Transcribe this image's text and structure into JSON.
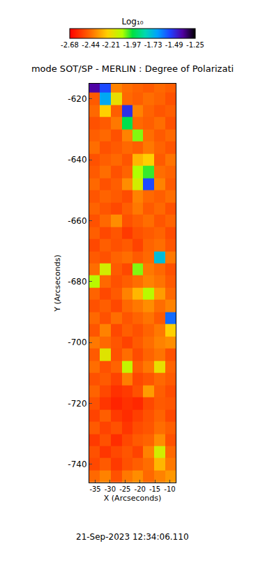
{
  "chart_data": {
    "type": "heatmap",
    "title": "mode SOT/SP - MERLIN : Degree of Polarizati",
    "xlabel": "X (Arcseconds)",
    "ylabel": "Y (Arcseconds)",
    "annotations": [
      "21-Sep-2023 12:34:06.110"
    ],
    "xlim": [
      -37,
      -8
    ],
    "ylim": [
      -746,
      -615
    ],
    "xticks": [
      -35,
      -30,
      -25,
      -20,
      -15,
      -10
    ],
    "yticks": [
      -740,
      -720,
      -700,
      -680,
      -660,
      -640,
      -620
    ],
    "grid": false,
    "colorbar": {
      "title": "Log₁₀",
      "range": [
        -2.68,
        -1.25
      ],
      "ticks": [
        -2.68,
        -2.44,
        -2.21,
        -1.97,
        -1.73,
        -1.49,
        -1.25
      ]
    },
    "x": [
      -35.2,
      -31.6,
      -27.9,
      -24.3,
      -20.7,
      -17.1,
      -13.4,
      -9.8
    ],
    "y": [
      -744,
      -740,
      -736,
      -732,
      -728,
      -724,
      -720,
      -716,
      -712,
      -708,
      -704,
      -700,
      -696,
      -692,
      -688,
      -684,
      -680,
      -676,
      -672,
      -668,
      -664,
      -660,
      -656,
      -652,
      -648,
      -644,
      -640,
      -636,
      -632,
      -628,
      -624,
      -620,
      -616
    ],
    "cells": [
      [
        -2.45,
        -2.4,
        -2.5,
        -2.42,
        -2.38,
        -2.45,
        -2.4,
        -2.36
      ],
      [
        -2.52,
        -2.48,
        -2.55,
        -2.5,
        -2.47,
        -2.44,
        -2.3,
        -2.42
      ],
      [
        -2.5,
        -2.56,
        -2.52,
        -2.49,
        -2.53,
        -2.4,
        -2.15,
        -2.45
      ],
      [
        -2.55,
        -2.5,
        -2.58,
        -2.52,
        -2.48,
        -2.46,
        -2.38,
        -2.5
      ],
      [
        -2.48,
        -2.53,
        -2.5,
        -2.56,
        -2.51,
        -2.49,
        -2.44,
        -2.47
      ],
      [
        -2.53,
        -2.47,
        -2.55,
        -2.58,
        -2.54,
        -2.5,
        -2.46,
        -2.52
      ],
      [
        -2.5,
        -2.56,
        -2.6,
        -2.57,
        -2.59,
        -2.52,
        -2.48,
        -2.49
      ],
      [
        -2.46,
        -2.52,
        -2.57,
        -2.55,
        -2.5,
        -2.35,
        -2.47,
        -2.51
      ],
      [
        -2.5,
        -2.48,
        -2.53,
        -2.41,
        -2.52,
        -2.49,
        -2.45,
        -2.48
      ],
      [
        -2.44,
        -2.5,
        -2.46,
        -2.12,
        -2.47,
        -2.42,
        -2.2,
        -2.46
      ],
      [
        -2.48,
        -2.18,
        -2.5,
        -2.44,
        -2.51,
        -2.46,
        -2.43,
        -2.5
      ],
      [
        -2.42,
        -2.45,
        -2.49,
        -2.53,
        -2.48,
        -2.44,
        -2.4,
        -2.38
      ],
      [
        -2.49,
        -2.4,
        -2.52,
        -2.47,
        -2.5,
        -2.46,
        -2.42,
        -2.25
      ],
      [
        -2.45,
        -2.5,
        -2.44,
        -2.49,
        -2.46,
        -2.43,
        -2.48,
        -1.6
      ],
      [
        -2.5,
        -2.47,
        -2.52,
        -2.45,
        -2.42,
        -2.38,
        -2.44,
        -2.4
      ],
      [
        -2.46,
        -2.52,
        -2.48,
        -2.4,
        -2.3,
        -2.1,
        -2.35,
        -2.45
      ],
      [
        -2.1,
        -2.45,
        -2.5,
        -2.47,
        -2.44,
        -2.4,
        -2.43,
        -2.48
      ],
      [
        -2.44,
        -2.15,
        -2.48,
        -2.52,
        -2.05,
        -2.42,
        -2.45,
        -2.5
      ],
      [
        -2.48,
        -2.5,
        -2.46,
        -2.44,
        -2.48,
        -2.45,
        -1.75,
        -2.42
      ],
      [
        -2.52,
        -2.47,
        -2.5,
        -2.48,
        -2.53,
        -2.46,
        -2.44,
        -2.49
      ],
      [
        -2.47,
        -2.52,
        -2.49,
        -2.55,
        -2.5,
        -2.48,
        -2.46,
        -2.51
      ],
      [
        -2.5,
        -2.45,
        -2.38,
        -2.5,
        -2.47,
        -2.44,
        -2.49,
        -2.46
      ],
      [
        -2.46,
        -2.49,
        -2.52,
        -2.47,
        -2.42,
        -2.48,
        -2.45,
        -2.5
      ],
      [
        -2.49,
        -2.46,
        -2.48,
        -2.51,
        -2.4,
        -2.45,
        -2.47,
        -2.44
      ],
      [
        -2.45,
        -2.5,
        -2.47,
        -2.38,
        -2.15,
        -1.55,
        -2.4,
        -2.48
      ],
      [
        -2.48,
        -2.44,
        -2.5,
        -2.46,
        -2.08,
        -2.0,
        -2.44,
        -2.46
      ],
      [
        -2.5,
        -2.47,
        -2.45,
        -2.49,
        -2.3,
        -2.25,
        -2.48,
        -2.43
      ],
      [
        -2.44,
        -2.5,
        -2.48,
        -2.45,
        -2.47,
        -2.42,
        -2.46,
        -2.49
      ],
      [
        -2.47,
        -2.45,
        -2.5,
        -2.4,
        -2.05,
        -2.44,
        -2.48,
        -2.45
      ],
      [
        -2.5,
        -2.48,
        -2.42,
        -1.95,
        -2.45,
        -2.47,
        -2.44,
        -2.5
      ],
      [
        -2.45,
        -2.25,
        -2.47,
        -1.5,
        -2.4,
        -2.46,
        -2.49,
        -2.47
      ],
      [
        -2.48,
        -1.7,
        -2.2,
        -2.45,
        -2.47,
        -2.44,
        -2.46,
        -2.5
      ],
      [
        -1.4,
        -1.55,
        -2.4,
        -2.44,
        -2.46,
        -2.48,
        -2.45,
        -2.47
      ]
    ]
  }
}
